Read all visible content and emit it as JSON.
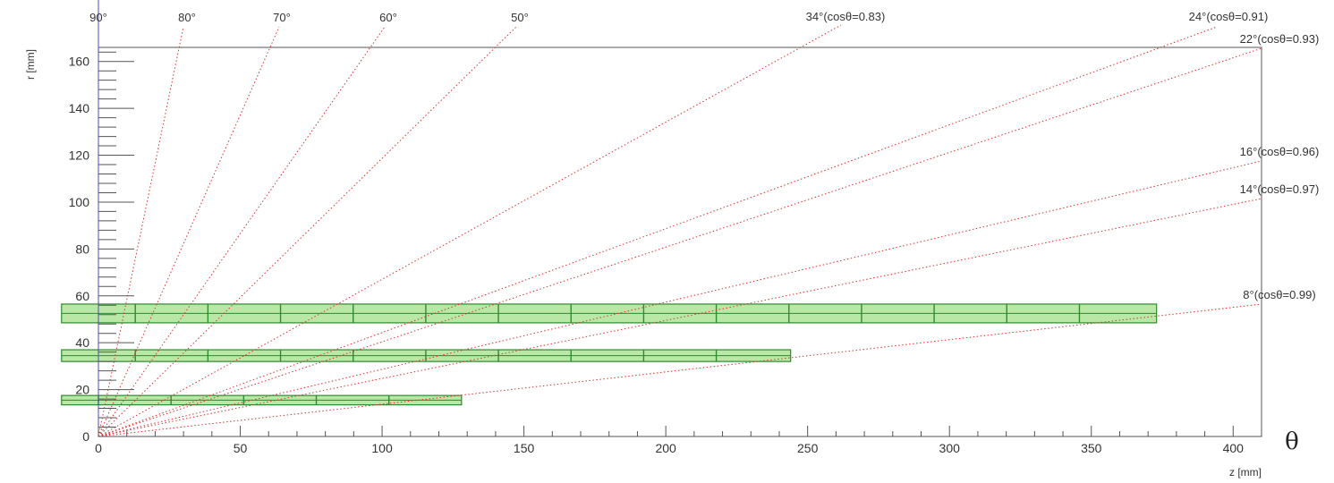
{
  "plot": {
    "xlabel": "z [mm]",
    "ylabel": "r [mm]",
    "theta_symbol": "θ",
    "xlim": [
      0,
      410
    ],
    "ylim": [
      0,
      166
    ],
    "x_ticks": [
      0,
      50,
      100,
      150,
      200,
      250,
      300,
      350,
      400
    ],
    "x_tick_labels": [
      "0",
      "50",
      "100",
      "150",
      "200",
      "250",
      "300",
      "350",
      "400"
    ],
    "y_ticks": [
      0,
      20,
      40,
      60,
      80,
      100,
      120,
      140,
      160
    ],
    "y_tick_labels": [
      "0",
      "20",
      "40",
      "60",
      "80",
      "100",
      "120",
      "140",
      "160"
    ],
    "angle_lines": [
      {
        "deg": 90,
        "label": "90°"
      },
      {
        "deg": 80,
        "label": "80°"
      },
      {
        "deg": 70,
        "label": "70°"
      },
      {
        "deg": 60,
        "label": "60°"
      },
      {
        "deg": 50,
        "label": "50°"
      },
      {
        "deg": 34,
        "label": "34°(cosθ=0.83)"
      },
      {
        "deg": 24,
        "label": "24°(cosθ=0.91)"
      },
      {
        "deg": 22,
        "label": "22°(cosθ=0.93)"
      },
      {
        "deg": 16,
        "label": "16°(cosθ=0.96)"
      },
      {
        "deg": 14,
        "label": "14°(cosθ=0.97)"
      },
      {
        "deg": 8,
        "label": "8°(cosθ=0.99)"
      }
    ],
    "layers": [
      {
        "r": 15.5,
        "half_height": 2,
        "z_min": -13,
        "z_max": 128,
        "divisions": [
          0,
          25.6,
          51.2,
          76.8,
          102.4
        ]
      },
      {
        "r": 34.5,
        "half_height": 2.5,
        "z_min": -13,
        "z_max": 244,
        "divisions": [
          13,
          38.6,
          64.2,
          89.8,
          115.4,
          141,
          166.6,
          192.2,
          217.8
        ]
      },
      {
        "r": 52.5,
        "half_height": 4,
        "z_min": -13,
        "z_max": 373,
        "divisions": [
          13,
          38.6,
          64.2,
          89.8,
          115.4,
          141,
          166.6,
          192.2,
          217.8,
          243.4,
          269,
          294.6,
          320.2,
          345.8
        ]
      }
    ],
    "colors": {
      "frame": "#555555",
      "angle_line": "#e03030",
      "layer_fill": "#b9e8a6",
      "layer_stroke": "#2e8b2e",
      "y_axis": "#4a4ac8"
    }
  }
}
